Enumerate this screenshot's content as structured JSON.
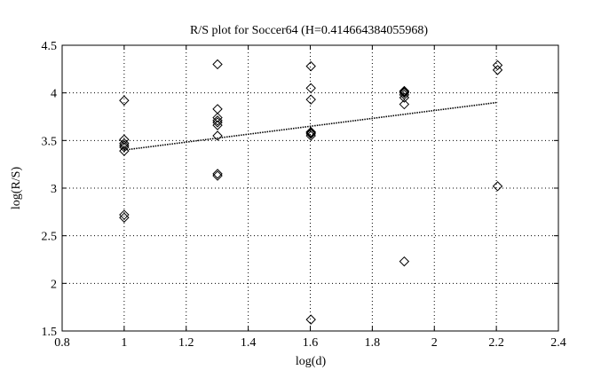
{
  "chart_data": {
    "type": "scatter",
    "title": "R/S plot for Soccer64 (H=0.414664384055968)",
    "xlabel": "log(d)",
    "ylabel": "log(R/S)",
    "xlim": [
      0.8,
      2.4
    ],
    "ylim": [
      1.5,
      4.5
    ],
    "xticks": [
      0.8,
      1,
      1.2,
      1.4,
      1.6,
      1.8,
      2,
      2.2,
      2.4
    ],
    "xtick_labels": [
      "0.8",
      "1",
      "1.2",
      "1.4",
      "1.6",
      "1.8",
      "2",
      "2.2",
      "2.4"
    ],
    "yticks": [
      1.5,
      2,
      2.5,
      3,
      3.5,
      4,
      4.5
    ],
    "ytick_labels": [
      "1.5",
      "2",
      "2.5",
      "3",
      "3.5",
      "4",
      "4.5"
    ],
    "grid": true,
    "marker": "diamond",
    "series": [
      {
        "x": [
          1.0,
          1.0,
          1.0,
          1.0,
          1.0,
          1.0,
          1.0,
          1.0,
          1.301,
          1.301,
          1.301,
          1.301,
          1.301,
          1.301,
          1.301,
          1.301,
          1.301,
          1.602,
          1.602,
          1.602,
          1.602,
          1.602,
          1.602,
          1.602,
          1.602,
          1.903,
          1.903,
          1.903,
          1.903,
          1.903,
          1.903,
          1.903,
          2.204,
          2.204,
          2.204
        ],
        "y": [
          3.92,
          3.51,
          3.47,
          3.43,
          3.39,
          2.72,
          2.69,
          3.45,
          4.3,
          3.83,
          3.74,
          3.69,
          3.66,
          3.55,
          3.15,
          3.13,
          3.71,
          4.28,
          4.05,
          3.93,
          3.59,
          3.57,
          3.55,
          1.62,
          3.58,
          4.02,
          4.0,
          3.98,
          3.95,
          3.88,
          2.23,
          4.01,
          4.29,
          4.24,
          3.02
        ]
      }
    ],
    "fit_line": {
      "x": [
        1.0,
        2.204
      ],
      "y": [
        3.4,
        3.9
      ]
    }
  }
}
